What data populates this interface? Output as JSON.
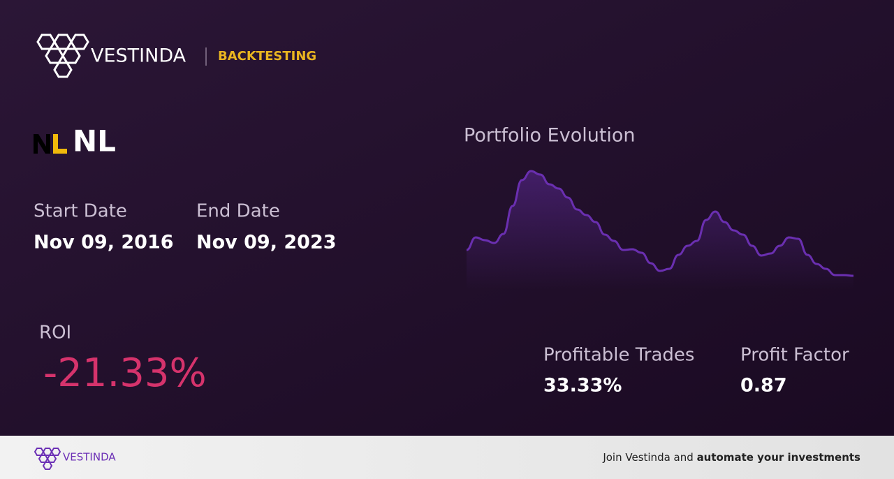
{
  "header": {
    "brand": "VESTINDA",
    "section": "BACKTESTING"
  },
  "asset": {
    "ticker": "NL"
  },
  "start_date": {
    "label": "Start Date",
    "value": "Nov 09, 2016"
  },
  "end_date": {
    "label": "End Date",
    "value": "Nov 09, 2023"
  },
  "roi": {
    "label": "ROI",
    "value": "-21.33%"
  },
  "chart_data": {
    "type": "line",
    "title": "Portfolio Evolution",
    "color": "#6a2fb0",
    "values": [
      42,
      60,
      56,
      52,
      65,
      105,
      142,
      155,
      150,
      136,
      130,
      117,
      100,
      92,
      82,
      64,
      55,
      42,
      43,
      38,
      23,
      12,
      15,
      35,
      48,
      55,
      85,
      97,
      82,
      70,
      64,
      48,
      34,
      37,
      48,
      60,
      58,
      35,
      22,
      15,
      6,
      6,
      5
    ]
  },
  "profitable_trades": {
    "label": "Profitable Trades",
    "value": "33.33%"
  },
  "profit_factor": {
    "label": "Profit Factor",
    "value": "0.87"
  },
  "footer": {
    "brand": "VESTINDA",
    "cta": "Join Vestinda and",
    "cta_bold": "automate your investments"
  }
}
